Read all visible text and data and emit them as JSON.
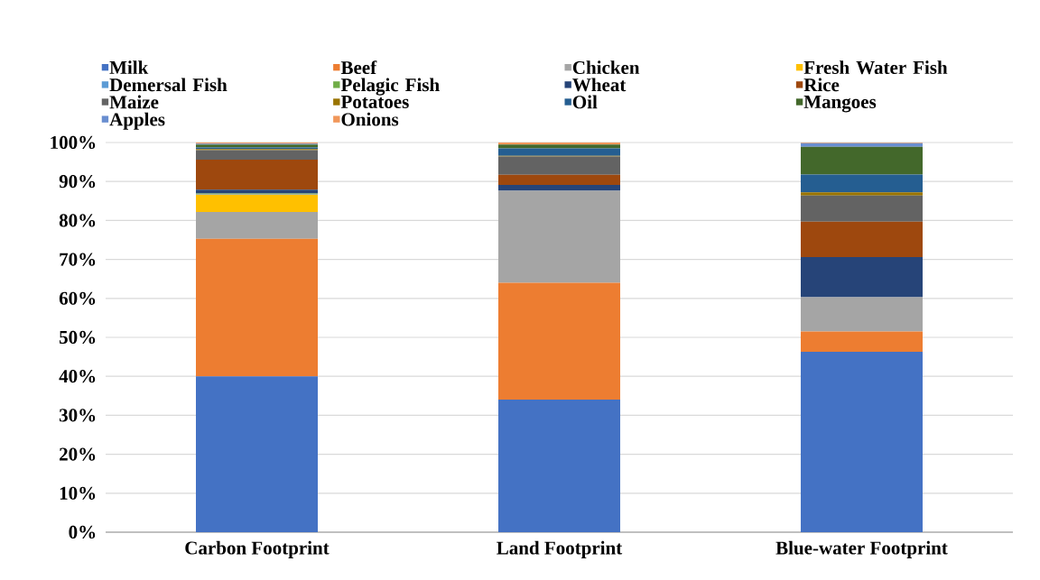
{
  "chart_data": {
    "type": "bar",
    "stacked": true,
    "categories": [
      "Carbon Footprint",
      "Land Footprint",
      "Blue-water Footprint"
    ],
    "series": [
      {
        "name": "Milk",
        "color": "#4472c4",
        "values": [
          40,
          34,
          46.3
        ]
      },
      {
        "name": "Beef",
        "color": "#ed7d31",
        "values": [
          35.3,
          30,
          5.2
        ]
      },
      {
        "name": "Chicken",
        "color": "#a5a5a5",
        "values": [
          6.9,
          23.6,
          8.8
        ]
      },
      {
        "name": "Fresh Water Fish",
        "color": "#ffc000",
        "values": [
          4.4,
          0,
          0
        ]
      },
      {
        "name": "Demersal Fish",
        "color": "#5b9bd5",
        "values": [
          0.2,
          0,
          0
        ]
      },
      {
        "name": "Pelagic Fish",
        "color": "#70ad47",
        "values": [
          0.1,
          0,
          0
        ]
      },
      {
        "name": "Wheat",
        "color": "#264478",
        "values": [
          1.0,
          1.5,
          10.3
        ]
      },
      {
        "name": "Rice",
        "color": "#9e480e",
        "values": [
          7.7,
          2.6,
          9.1
        ]
      },
      {
        "name": "Maize",
        "color": "#636363",
        "values": [
          2.4,
          4.7,
          6.7
        ]
      },
      {
        "name": "Potatoes",
        "color": "#997300",
        "values": [
          0.3,
          0.2,
          0.8
        ]
      },
      {
        "name": "Oil",
        "color": "#255e91",
        "values": [
          0.4,
          1.9,
          4.6
        ]
      },
      {
        "name": "Mangoes",
        "color": "#43682b",
        "values": [
          0.8,
          1.0,
          7.1
        ]
      },
      {
        "name": "Apples",
        "color": "#698ed0",
        "values": [
          0.2,
          0,
          0.9
        ]
      },
      {
        "name": "Onions",
        "color": "#f1975a",
        "values": [
          0.3,
          0.5,
          0.2
        ]
      }
    ],
    "ylim": [
      0,
      100
    ],
    "yticks": [
      {
        "value": 0,
        "label": "0%"
      },
      {
        "value": 10,
        "label": "10%"
      },
      {
        "value": 20,
        "label": "20%"
      },
      {
        "value": 30,
        "label": "30%"
      },
      {
        "value": 40,
        "label": "40%"
      },
      {
        "value": 50,
        "label": "50%"
      },
      {
        "value": 60,
        "label": "60%"
      },
      {
        "value": 70,
        "label": "70%"
      },
      {
        "value": 80,
        "label": "80%"
      },
      {
        "value": 90,
        "label": "90%"
      },
      {
        "value": 100,
        "label": "100%"
      }
    ],
    "grid": "y",
    "legend": "top"
  }
}
